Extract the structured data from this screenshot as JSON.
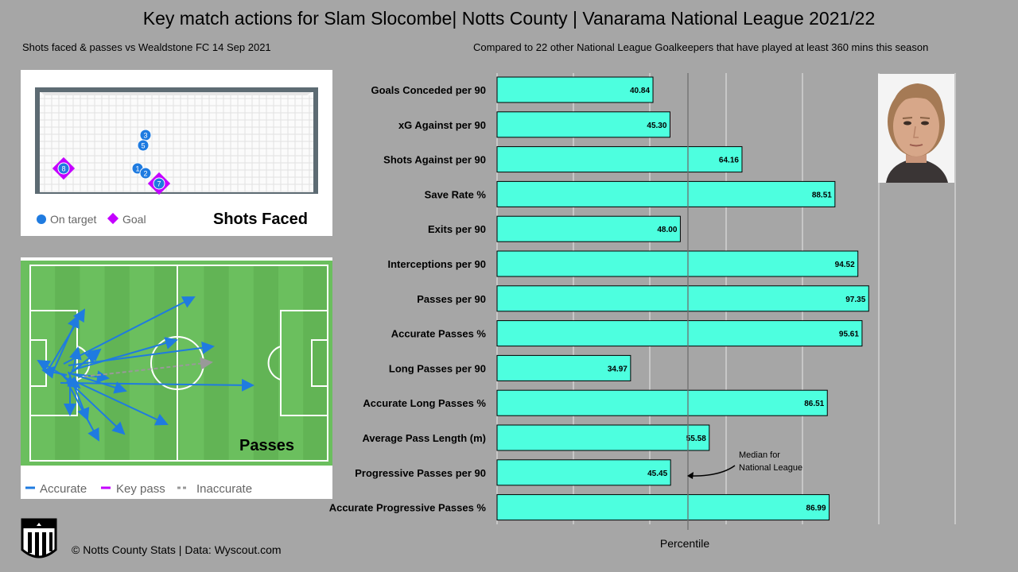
{
  "title": "Key match actions for Slam Slocombe| Notts County | Vanarama National League 2021/22",
  "subtitle_left": "Shots faced & passes vs Wealdstone FC 14 Sep 2021",
  "subtitle_right": "Compared to 22 other  National League Goalkeepers that have played at least 360 mins this season",
  "shots_panel": {
    "title": "Shots Faced",
    "legend": {
      "on_target": "On target",
      "goal": "Goal"
    },
    "shots": [
      {
        "n": "1",
        "type": "on_target"
      },
      {
        "n": "2",
        "type": "on_target"
      },
      {
        "n": "3",
        "type": "on_target"
      },
      {
        "n": "5",
        "type": "on_target"
      },
      {
        "n": "7",
        "type": "goal"
      },
      {
        "n": "8",
        "type": "goal"
      }
    ],
    "colors": {
      "on_target": "#1f7be0",
      "goal": "#c400ff"
    }
  },
  "passes_panel": {
    "title": "Passes",
    "legend": {
      "accurate": "Accurate",
      "key_pass": "Key pass",
      "inaccurate": "Inaccurate"
    },
    "colors": {
      "accurate": "#1f7be0",
      "key_pass": "#c400ff",
      "inaccurate": "#999999",
      "pitch": "#6bbf5e"
    }
  },
  "chart_data": {
    "type": "bar",
    "categories": [
      "Goals Conceded per 90",
      "xG Against per 90",
      "Shots Against per 90",
      "Save Rate %",
      "Exits per 90",
      "Interceptions per 90",
      "Passes per 90",
      "Accurate Passes %",
      "Long Passes per 90",
      "Accurate Long Passes %",
      "Average Pass Length (m)",
      "Progressive Passes per 90",
      "Accurate Progressive Passes %"
    ],
    "values": [
      40.84,
      45.3,
      64.16,
      88.51,
      48.0,
      94.52,
      97.35,
      95.61,
      34.97,
      86.51,
      55.58,
      45.45,
      86.99
    ],
    "value_labels": [
      "40.84",
      "45.30",
      "64.16",
      "88.51",
      "48.00",
      "94.52",
      "97.35",
      "95.61",
      "34.97",
      "86.51",
      "55.58",
      "45.45",
      "86.99"
    ],
    "xlabel": "Percentile",
    "xlim": [
      0,
      120
    ],
    "median": 50,
    "median_annotation": [
      "Median for",
      "National League"
    ],
    "grid": true,
    "bar_color": "#4dffdf"
  },
  "footer": "© Notts County Stats | Data: Wyscout.com",
  "logo_text": "NOTTS COUNTY STATS"
}
